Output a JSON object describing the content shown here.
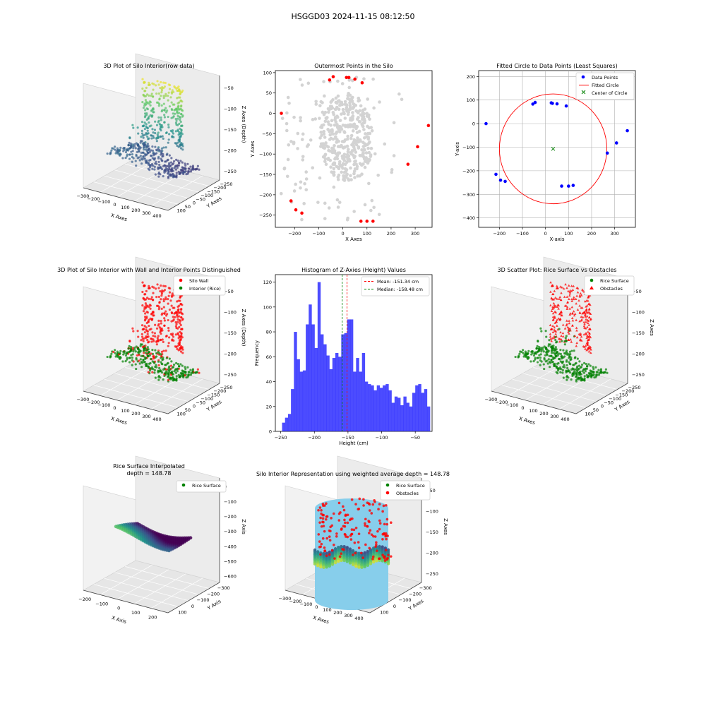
{
  "figure": {
    "suptitle": "HSGGD03 2024-11-15 08:12:50"
  },
  "chart_data": [
    {
      "type": "scatter3d",
      "title": "3D Plot of Silo Interior(row data)",
      "xlabel": "X Axes",
      "ylabel": "Y Axes",
      "zlabel": "Z Axes (Depth)",
      "xticks": [
        "−300",
        "−200",
        "−100",
        "0",
        "100",
        "200",
        "300",
        "400"
      ],
      "yticks": [
        "100",
        "50",
        "0",
        "−50",
        "−100",
        "−150",
        "−200",
        "−250"
      ],
      "zticks": [
        "−50",
        "−100",
        "−150",
        "−200",
        "−250"
      ],
      "colormap": "viridis"
    },
    {
      "type": "scatter",
      "title": "Outermost Points in the Silo",
      "xlabel": "X Axes",
      "ylabel": "Y Axes",
      "xlim": [
        -280,
        370
      ],
      "ylim": [
        -280,
        105
      ],
      "xticks": [
        -200,
        -100,
        0,
        100,
        200,
        300
      ],
      "yticks": [
        100,
        50,
        0,
        -50,
        -100,
        -150,
        -200,
        -250
      ],
      "series": [
        {
          "color": "#d3d3d3",
          "kind": "all-points"
        },
        {
          "color": "#ff0000",
          "kind": "outermost",
          "points": [
            [
              -255,
              0
            ],
            [
              -215,
              -215
            ],
            [
              -195,
              -237
            ],
            [
              -170,
              -245
            ],
            [
              -55,
              82
            ],
            [
              -40,
              90
            ],
            [
              15,
              88
            ],
            [
              25,
              88
            ],
            [
              50,
              84
            ],
            [
              80,
              75
            ],
            [
              75,
              -265
            ],
            [
              100,
              -265
            ],
            [
              125,
              -265
            ],
            [
              270,
              -125
            ],
            [
              310,
              -82
            ],
            [
              355,
              -30
            ]
          ]
        }
      ]
    },
    {
      "type": "scatter",
      "title": "Fitted Circle to Data Points (Least Squares)",
      "xlabel": "X-axis",
      "ylabel": "Y-axis",
      "xlim": [
        -290,
        390
      ],
      "ylim": [
        -440,
        225
      ],
      "xticks": [
        -200,
        -100,
        0,
        100,
        200,
        300
      ],
      "yticks": [
        200,
        100,
        0,
        -100,
        -200,
        -300,
        -400
      ],
      "grid": true,
      "legend": "top-right",
      "series": [
        {
          "name": "Data Points",
          "color": "#0000ff",
          "points": [
            [
              -258,
              0
            ],
            [
              -215,
              -215
            ],
            [
              -195,
              -240
            ],
            [
              -175,
              -245
            ],
            [
              -55,
              83
            ],
            [
              -45,
              90
            ],
            [
              25,
              88
            ],
            [
              30,
              86
            ],
            [
              50,
              84
            ],
            [
              90,
              75
            ],
            [
              70,
              -265
            ],
            [
              100,
              -265
            ],
            [
              120,
              -262
            ],
            [
              268,
              -125
            ],
            [
              308,
              -82
            ],
            [
              355,
              -30
            ]
          ]
        },
        {
          "name": "Fitted Circle",
          "color": "#ff0000",
          "center": [
            33,
            -107
          ],
          "radius": 233
        },
        {
          "name": "Center of Circle",
          "color": "#008000",
          "marker": "x",
          "points": [
            [
              33,
              -107
            ]
          ]
        }
      ]
    },
    {
      "type": "scatter3d",
      "title": "3D Plot of Silo Interior with Wall and Interior Points Distinguished",
      "xlabel": "X Axes",
      "ylabel": "Y Axes",
      "zlabel": "Z Axes (Depth)",
      "xticks": [
        "−300",
        "−200",
        "−100",
        "0",
        "100",
        "200",
        "300",
        "400"
      ],
      "yticks": [
        "100",
        "50",
        "0",
        "−50",
        "−100",
        "−150",
        "−200",
        "−250"
      ],
      "zticks": [
        "−50",
        "−100",
        "−150",
        "−200",
        "−250"
      ],
      "legend": "top-right",
      "series": [
        {
          "name": "Silo Wall",
          "color": "#ff0000"
        },
        {
          "name": "Interior (Rice)",
          "color": "#008000"
        }
      ]
    },
    {
      "type": "bar",
      "title": "Histogram of Z-Axies (Height) Values",
      "xlabel": "Height (cm)",
      "ylabel": "Frequency",
      "xlim": [
        -258,
        -25
      ],
      "ylim": [
        0,
        126
      ],
      "xticks": [
        -250,
        -200,
        -150,
        -100,
        -50
      ],
      "yticks": [
        0,
        20,
        40,
        60,
        80,
        100,
        120
      ],
      "color": "#0000ff",
      "bin_start": -248,
      "bin_width": 4.4,
      "values": [
        7,
        11,
        14,
        34,
        80,
        58,
        48,
        49,
        86,
        102,
        86,
        67,
        120,
        78,
        70,
        61,
        50,
        59,
        63,
        60,
        78,
        79,
        90,
        90,
        48,
        59,
        48,
        63,
        40,
        38,
        37,
        33,
        37,
        35,
        37,
        38,
        33,
        23,
        28,
        27,
        21,
        28,
        23,
        20,
        31,
        37,
        38,
        31,
        34,
        20
      ],
      "mean": -151.34,
      "median": -158.48,
      "mean_label": "Mean: -151.34 cm",
      "median_label": "Median: -158.48 cm",
      "mean_color": "#ff0000",
      "median_color": "#008000",
      "legend": "top-right"
    },
    {
      "type": "scatter3d",
      "title": "3D Scatter Plot: Rice Surface vs Obstacles",
      "xlabel": "X Axes",
      "ylabel": "Y Axes",
      "zlabel": "Z Axes",
      "xticks": [
        "−300",
        "−200",
        "−100",
        "0",
        "100",
        "200",
        "300",
        "400"
      ],
      "yticks": [
        "100",
        "50",
        "0",
        "−50",
        "−100",
        "−150",
        "−200",
        "−250"
      ],
      "zticks": [
        "−50",
        "−100",
        "−150",
        "−200",
        "−250"
      ],
      "legend": "top-right",
      "series": [
        {
          "name": "Rice Surface",
          "color": "#008000"
        },
        {
          "name": "Obstacles",
          "color": "#ff0000",
          "marker": "triangle"
        }
      ]
    },
    {
      "type": "surface3d",
      "title": "Rice Surface Interpolated",
      "subtitle": "depth = 148.78",
      "xlabel": "X Axis",
      "ylabel": "Y Axis",
      "zlabel": "Z Axis",
      "xticks": [
        "−200",
        "−100",
        "0",
        "100",
        "200"
      ],
      "yticks": [
        "100",
        "0",
        "−100",
        "−200",
        "−300"
      ],
      "zticks": [
        "0",
        "−100",
        "−200",
        "−300",
        "−400",
        "−500",
        "−600"
      ],
      "legend": "top-right",
      "series": [
        {
          "name": "Rice Surface",
          "color": "#008000"
        }
      ]
    },
    {
      "type": "surface3d",
      "title": "Silo Interior Representation using weighted average depth = 148.78",
      "xlabel": "X Axes",
      "ylabel": "Y Axes",
      "zlabel": "Z Axes",
      "xticks": [
        "−300",
        "−200",
        "−100",
        "0",
        "100",
        "200",
        "300",
        "400"
      ],
      "yticks": [
        "100",
        "0",
        "−100",
        "−200",
        "−300"
      ],
      "zticks": [
        "−50",
        "−100",
        "−150",
        "−200",
        "−250"
      ],
      "legend": "top-right",
      "series": [
        {
          "name": "Rice Surface",
          "color": "#008000"
        },
        {
          "name": "Obstacles",
          "color": "#ff0000"
        }
      ],
      "wall_color": "#87ceeb"
    }
  ]
}
